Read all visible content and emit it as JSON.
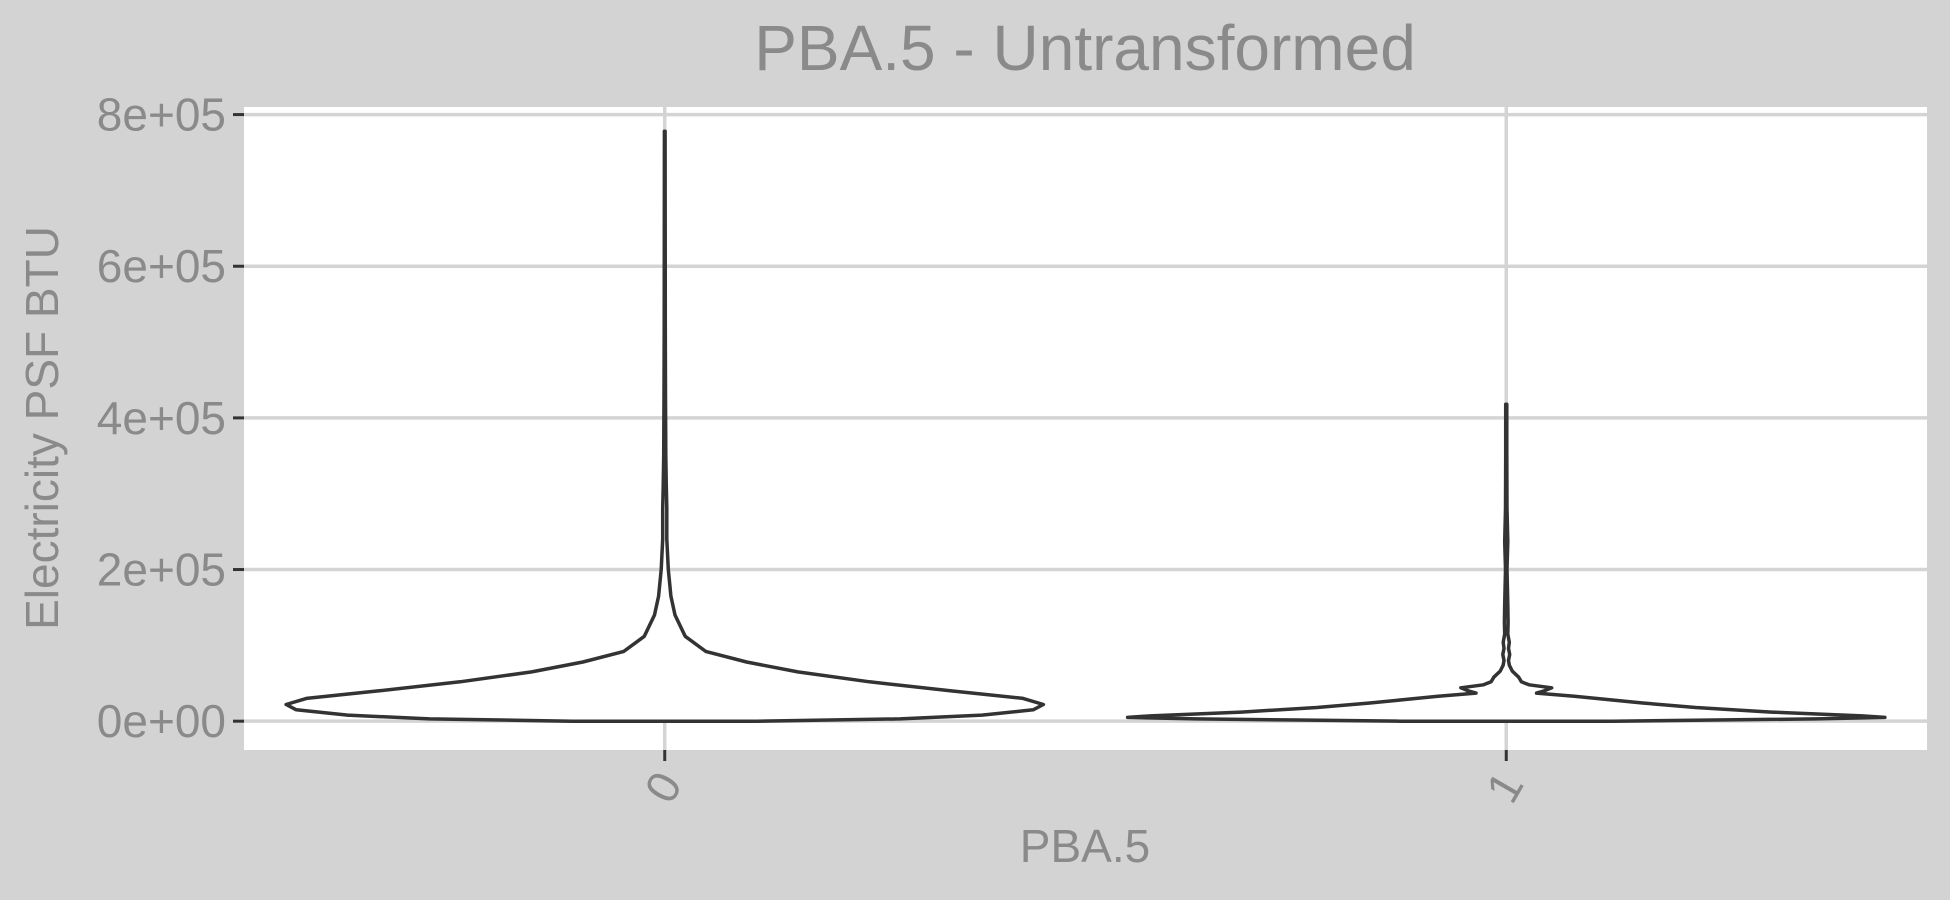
{
  "chart_data": {
    "type": "violin",
    "title": "PBA.5 - Untransformed",
    "xlabel": "PBA.5",
    "ylabel": "Electricity PSF BTU",
    "categories": [
      "0",
      "1"
    ],
    "ylim": [
      -38000,
      810000
    ],
    "y_ticks": [
      {
        "value": 0,
        "label": "0e+00"
      },
      {
        "value": 200000,
        "label": "2e+05"
      },
      {
        "value": 400000,
        "label": "4e+05"
      },
      {
        "value": 600000,
        "label": "6e+05"
      },
      {
        "value": 800000,
        "label": "8e+05"
      }
    ],
    "grid": true,
    "violins": [
      {
        "category": "0",
        "min": 0,
        "max": 778000,
        "density": [
          [
            0,
            0.18
          ],
          [
            3000,
            0.46
          ],
          [
            8000,
            0.62
          ],
          [
            15000,
            0.72
          ],
          [
            22000,
            0.74
          ],
          [
            30000,
            0.7
          ],
          [
            40000,
            0.56
          ],
          [
            52000,
            0.4
          ],
          [
            65000,
            0.26
          ],
          [
            78000,
            0.16
          ],
          [
            92000,
            0.08
          ],
          [
            112000,
            0.04
          ],
          [
            140000,
            0.02
          ],
          [
            165000,
            0.012
          ],
          [
            200000,
            0.007
          ],
          [
            240000,
            0.004
          ],
          [
            280000,
            0.004
          ],
          [
            310000,
            0.003
          ],
          [
            350000,
            0.002
          ],
          [
            430000,
            0.0015
          ],
          [
            520000,
            0.001
          ],
          [
            650000,
            0.0008
          ],
          [
            778000,
            0.0006
          ]
        ]
      },
      {
        "category": "1",
        "min": 0,
        "max": 418000,
        "density": [
          [
            0,
            0.28
          ],
          [
            1500,
            0.55
          ],
          [
            3000,
            0.82
          ],
          [
            5000,
            1.0
          ],
          [
            7000,
            0.94
          ],
          [
            12000,
            0.7
          ],
          [
            18000,
            0.5
          ],
          [
            24000,
            0.36
          ],
          [
            28000,
            0.28
          ],
          [
            33000,
            0.18
          ],
          [
            37000,
            0.08
          ],
          [
            40000,
            0.1
          ],
          [
            44000,
            0.12
          ],
          [
            48000,
            0.06
          ],
          [
            52000,
            0.04
          ],
          [
            58000,
            0.033
          ],
          [
            66000,
            0.016
          ],
          [
            74000,
            0.008
          ],
          [
            80000,
            0.006
          ],
          [
            88000,
            0.009
          ],
          [
            96000,
            0.006
          ],
          [
            104000,
            0.008
          ],
          [
            115000,
            0.004
          ],
          [
            130000,
            0.005
          ],
          [
            155000,
            0.004
          ],
          [
            200000,
            0.002
          ],
          [
            237000,
            0.004
          ],
          [
            280000,
            0.002
          ],
          [
            350000,
            0.0015
          ],
          [
            418000,
            0.0015
          ]
        ]
      }
    ]
  }
}
